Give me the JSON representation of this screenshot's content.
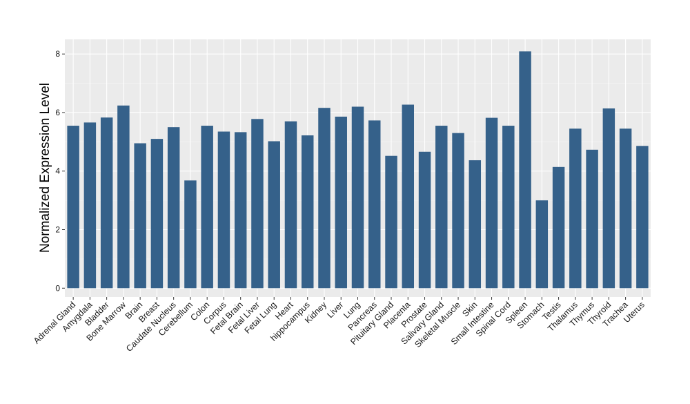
{
  "chart_data": {
    "type": "bar",
    "title": "",
    "xlabel": "",
    "ylabel": "Normalized Expression Level",
    "ylim": [
      -0.3,
      8.5
    ],
    "yticks": [
      0,
      2,
      4,
      6,
      8
    ],
    "grid": true,
    "colors": {
      "bar": "#35618a",
      "panel": "#ebebeb",
      "grid": "#ffffff"
    },
    "categories": [
      "Adrenal Gland",
      "Amygdala",
      "Bladder",
      "Bone Marrow",
      "Brain",
      "Breast",
      "Caudate Nucleus",
      "Cerebellum",
      "Colon",
      "Corpus",
      "Fetal Brain",
      "Fetal Liver",
      "Fetal Lung",
      "Heart",
      "hippocampus",
      "Kidney",
      "Liver",
      "Lung",
      "Pancreas",
      "Pituitary Gland",
      "Placenta",
      "Prostate",
      "Salivary Gland",
      "Skeletal Muscle",
      "Skin",
      "Small Intestine",
      "Spinal Cord",
      "Spleen",
      "Stomach",
      "Testis",
      "Thalamus",
      "Thymus",
      "Thyroid",
      "Trachea",
      "Uterus"
    ],
    "values": [
      5.55,
      5.66,
      5.83,
      6.24,
      4.95,
      5.1,
      5.5,
      3.68,
      5.55,
      5.35,
      5.33,
      5.78,
      5.02,
      5.7,
      5.22,
      6.16,
      5.86,
      6.2,
      5.73,
      4.52,
      6.27,
      4.66,
      5.55,
      5.3,
      4.37,
      5.82,
      5.55,
      8.09,
      3.0,
      4.14,
      5.45,
      4.73,
      6.14,
      5.45,
      4.86
    ]
  }
}
